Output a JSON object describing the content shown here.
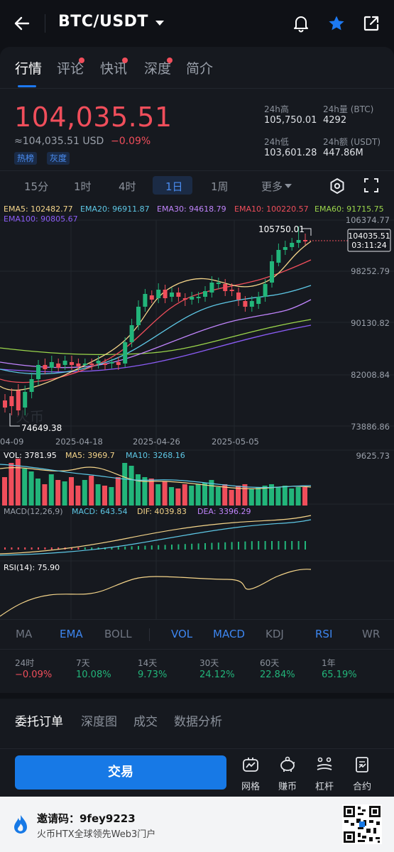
{
  "header": {
    "pair": "BTC/USDT"
  },
  "tabs": [
    {
      "label": "行情",
      "dot": false
    },
    {
      "label": "评论",
      "dot": true
    },
    {
      "label": "快讯",
      "dot": true
    },
    {
      "label": "深度",
      "dot": true
    },
    {
      "label": "简介",
      "dot": false
    }
  ],
  "price": {
    "last": "104,035.51",
    "usd": "≈104,035.51 USD",
    "change": "−0.09%",
    "badges": [
      "热榜",
      "灰度"
    ]
  },
  "stats": {
    "high_label": "24h高",
    "high": "105,750.01",
    "vol_label": "24h量 (BTC)",
    "vol": "4292",
    "low_label": "24h低",
    "low": "103,601.28",
    "amount_label": "24h额 (USDT)",
    "amount": "447.86M"
  },
  "intervals": [
    "15分",
    "1时",
    "4时",
    "1日",
    "1周",
    "更多"
  ],
  "selected_interval": "1日",
  "ema": {
    "ema5": "EMA5: 102482.77",
    "ema20": "EMA20: 96911.87",
    "ema30": "EMA30: 94618.79",
    "ema10": "EMA10: 100220.57",
    "ema60": "EMA60: 91715.75",
    "ema100": "EMA100: 90805.67"
  },
  "chart_labels": {
    "max_marker": "105750.01",
    "min_marker": "74649.38",
    "current_price": "104035.51",
    "countdown": "03:11:24",
    "watermark": "火币",
    "vol_line": "VOL: 3781.95",
    "ma5_line": "MA5: 3969.7",
    "ma10_line": "MA10: 3268.16",
    "vol_max": "9625.73",
    "macd_title": "MACD(12,26,9)",
    "macd_val": "MACD: 643.54",
    "dif_val": "DIF: 4039.83",
    "dea_val": "DEA: 3396.29",
    "rsi_title": "RSI(14): 75.90"
  },
  "chart_data": {
    "type": "candlestick",
    "y_ticks": [
      "106374.77",
      "98252.79",
      "90130.82",
      "82008.84",
      "73886.86"
    ],
    "x_ticks": [
      "04-09",
      "2025-04-18",
      "2025-04-26",
      "2025-05-05"
    ]
  },
  "indicators": [
    "MA",
    "EMA",
    "BOLL",
    "VOL",
    "MACD",
    "KDJ",
    "RSI",
    "WR"
  ],
  "indicators_active": [
    "EMA",
    "VOL",
    "MACD",
    "RSI"
  ],
  "periods": [
    {
      "label": "24时",
      "value": "−0.09%",
      "color": "#f04e5b"
    },
    {
      "label": "7天",
      "value": "10.08%",
      "color": "#22b57a"
    },
    {
      "label": "14天",
      "value": "9.73%",
      "color": "#22b57a"
    },
    {
      "label": "30天",
      "value": "24.12%",
      "color": "#22b57a"
    },
    {
      "label": "60天",
      "value": "22.84%",
      "color": "#22b57a"
    },
    {
      "label": "1年",
      "value": "65.19%",
      "color": "#22b57a"
    }
  ],
  "order_tabs": [
    "委托订单",
    "深度图",
    "成交",
    "数据分析"
  ],
  "trade": {
    "button": "交易",
    "tools": [
      "网格",
      "赚币",
      "杠杆",
      "合约"
    ]
  },
  "invite": {
    "code": "邀请码：9fey9223",
    "subtitle": "火币HTX全球领先Web3门户"
  },
  "colors": {
    "up": "#22b57a",
    "down": "#f04e5b",
    "accent": "#1779e6"
  }
}
